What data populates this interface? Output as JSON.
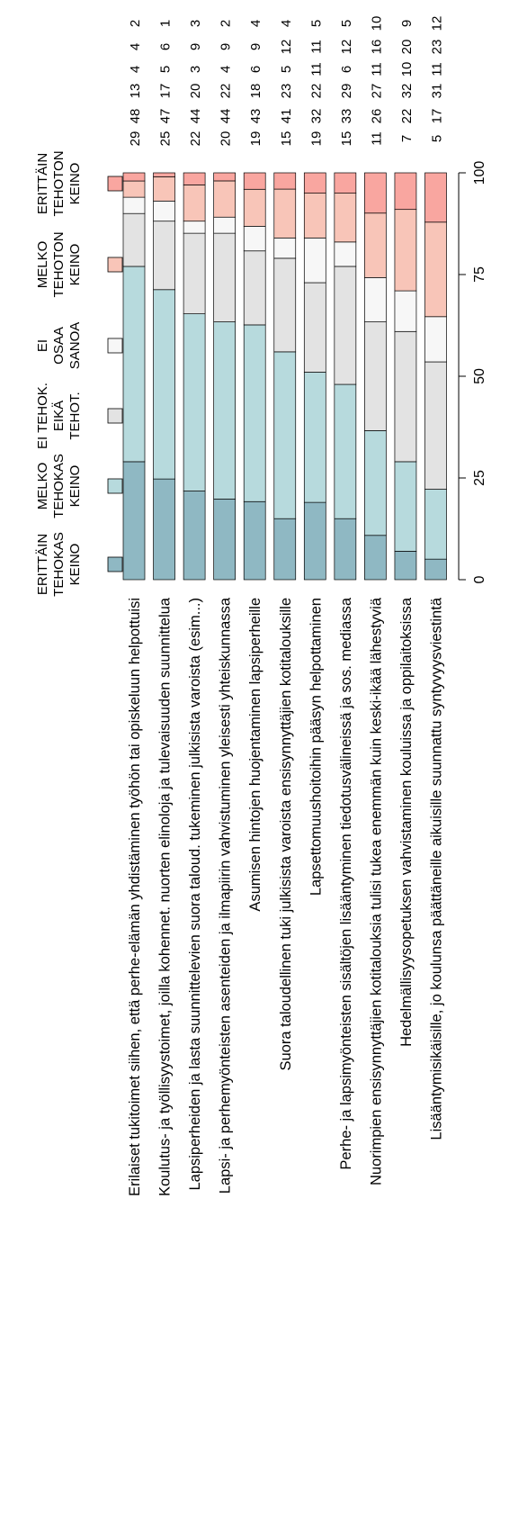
{
  "chart_data": {
    "type": "bar",
    "orientation": "horizontal-stacked-100",
    "rotation": "rotated 90deg counter-clockwise",
    "xlim": [
      0,
      100
    ],
    "x_ticks": [
      "0",
      "25",
      "50",
      "75",
      "100"
    ],
    "grid": false,
    "legend_position": "top",
    "legend": [
      {
        "label": [
          "ERITTÄIN",
          "TEHOKAS",
          "KEINO"
        ],
        "color": "#8fb8c3"
      },
      {
        "label": [
          "MELKO",
          "TEHOKAS",
          "KEINO"
        ],
        "color": "#b7dadd"
      },
      {
        "label": [
          "EI TEHOK.",
          "EIKÄ",
          "TEHOT."
        ],
        "color": "#e3e3e3"
      },
      {
        "label": [
          "EI",
          "OSAA",
          "SANOA"
        ],
        "color": "#f7f7f7"
      },
      {
        "label": [
          "MELKO",
          "TEHOTON",
          "KEINO"
        ],
        "color": "#f8c5b8"
      },
      {
        "label": [
          "ERITTÄIN",
          "TEHOTON",
          "KEINO"
        ],
        "color": "#f9a6a0"
      }
    ],
    "categories": [
      "Erilaiset tukitoimet siihen, että perhe-elämän yhdistäminen työhön tai opiskeluun helpottuisi",
      "Koulutus- ja työllisyystoimet, joilla kohennet. nuorten elinoloja ja tulevaisuuden suunnittelua",
      "Lapsiperheiden ja lasta suunnittelevien suora taloud. tukeminen julkisista varoista (esim...)",
      "Lapsi- ja perhemyönteisten asenteiden ja ilmapiirin vahvistuminen yleisesti yhteiskunnassa",
      "Asumisen hintojen huojentaminen lapsiperheille",
      "Suora taloudellinen tuki julkisista varoista ensisynnyttäjien kotitalouksille",
      "Lapsettomuushoitoihin pääsyn helpottaminen",
      "Perhe- ja lapsimyönteisten sisältöjen lisääntyminen tiedotusvälineissä ja sos. mediassa",
      "Nuorimpien ensisynnyttäjien kotitalouksia tulisi tukea enemmän kuin keski-ikää lähestyviä",
      "Hedelmällisyysopetuksen vahvistaminen kouluissa ja oppilaitoksissa",
      "Lisääntymisikäisille, jo koulunsa päättäneille aikuisille suunnattu syntyvyysviestintä"
    ],
    "values": [
      [
        29,
        48,
        13,
        4,
        4,
        2
      ],
      [
        25,
        47,
        17,
        5,
        6,
        1
      ],
      [
        22,
        44,
        20,
        3,
        9,
        3
      ],
      [
        20,
        44,
        22,
        4,
        9,
        2
      ],
      [
        19,
        43,
        18,
        6,
        9,
        4
      ],
      [
        15,
        41,
        23,
        5,
        12,
        4
      ],
      [
        19,
        32,
        22,
        11,
        11,
        5
      ],
      [
        15,
        33,
        29,
        6,
        12,
        5
      ],
      [
        11,
        26,
        27,
        11,
        16,
        10
      ],
      [
        7,
        22,
        32,
        10,
        20,
        9
      ],
      [
        5,
        17,
        31,
        11,
        23,
        12
      ]
    ]
  }
}
